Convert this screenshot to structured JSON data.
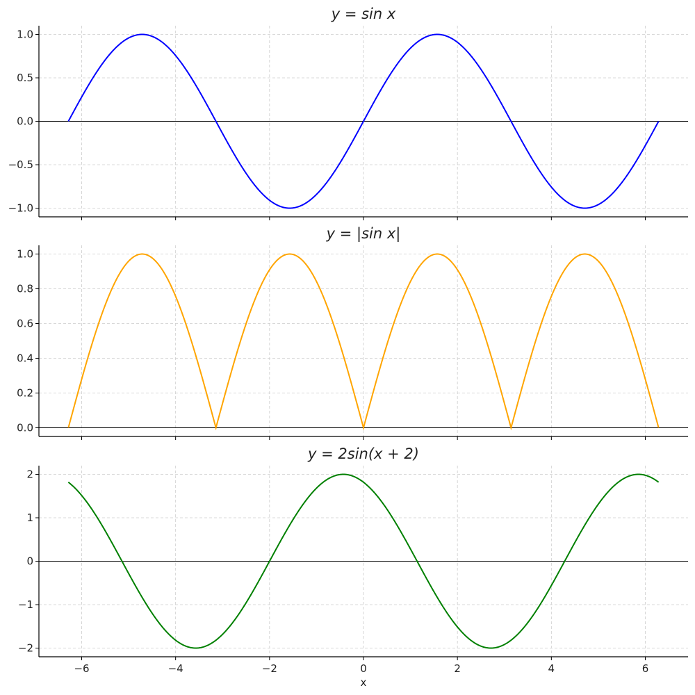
{
  "chart_data": [
    {
      "type": "line",
      "title": "y = sin x",
      "expression": "sin(x)",
      "x_domain": [
        -6.283,
        6.283
      ],
      "color": "#0000ff",
      "xlim": [
        -6.91,
        6.91
      ],
      "ylim": [
        -1.1,
        1.1
      ],
      "xticks": [
        -6,
        -4,
        -2,
        0,
        2,
        4,
        6
      ],
      "yticks": [
        -1.0,
        -0.5,
        0.0,
        0.5,
        1.0
      ],
      "ytick_labels": [
        "−1.0",
        "−0.5",
        "0.0",
        "0.5",
        "1.0"
      ],
      "show_xtick_labels": false,
      "hline": 0,
      "grid": true
    },
    {
      "type": "line",
      "title": "y = |sin x|",
      "expression": "abs(sin(x))",
      "x_domain": [
        -6.283,
        6.283
      ],
      "color": "#ffa500",
      "xlim": [
        -6.91,
        6.91
      ],
      "ylim": [
        -0.05,
        1.05
      ],
      "xticks": [
        -6,
        -4,
        -2,
        0,
        2,
        4,
        6
      ],
      "yticks": [
        0.0,
        0.2,
        0.4,
        0.6,
        0.8,
        1.0
      ],
      "ytick_labels": [
        "0.0",
        "0.2",
        "0.4",
        "0.6",
        "0.8",
        "1.0"
      ],
      "show_xtick_labels": false,
      "hline": 0,
      "grid": true
    },
    {
      "type": "line",
      "title": "y = 2sin(x + 2)",
      "expression": "2*sin(x+2)",
      "x_domain": [
        -6.283,
        6.283
      ],
      "color": "#008000",
      "xlim": [
        -6.91,
        6.91
      ],
      "ylim": [
        -2.2,
        2.2
      ],
      "xticks": [
        -6,
        -4,
        -2,
        0,
        2,
        4,
        6
      ],
      "xtick_labels": [
        "−6",
        "−4",
        "−2",
        "0",
        "2",
        "4",
        "6"
      ],
      "yticks": [
        -2,
        -1,
        0,
        1,
        2
      ],
      "ytick_labels": [
        "−2",
        "−1",
        "0",
        "1",
        "2"
      ],
      "show_xtick_labels": true,
      "xlabel": "x",
      "hline": 0,
      "grid": true
    }
  ]
}
